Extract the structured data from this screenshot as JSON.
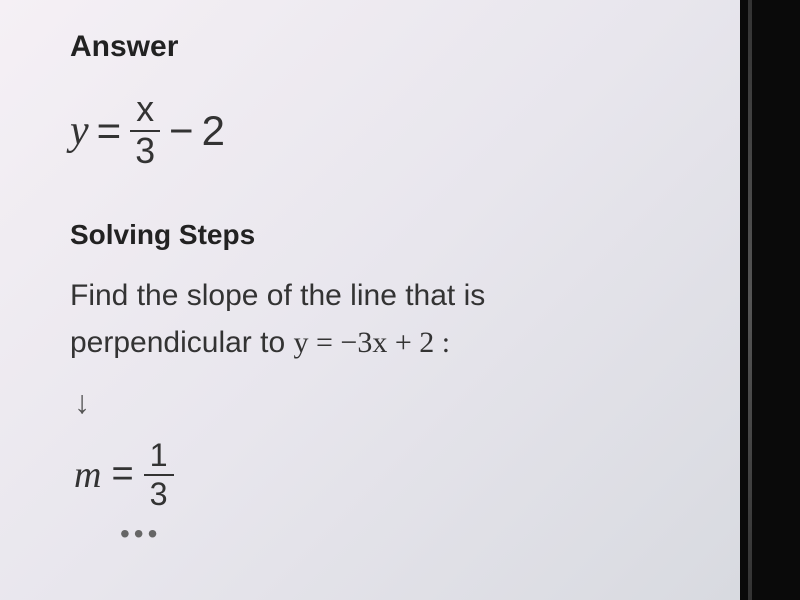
{
  "answer": {
    "heading": "Answer",
    "equation": {
      "lhs": "y",
      "equals": "=",
      "frac_num": "x",
      "frac_den": "3",
      "op": "−",
      "constant": "2"
    }
  },
  "solving": {
    "heading": "Solving Steps",
    "step1_text_a": "Find the slope of the line that is",
    "step1_text_b": "perpendicular to ",
    "step1_eq": "y = −3x + 2 :",
    "arrow": "↓",
    "slope": {
      "lhs": "m",
      "equals": "=",
      "frac_num": "1",
      "frac_den": "3"
    },
    "ellipsis": "•••"
  },
  "styling": {
    "heading_fontsize": 30,
    "body_fontsize": 30,
    "equation_fontsize": 42,
    "text_color": "#2a2a2a",
    "background_gradient_start": "#f5f0f5",
    "background_gradient_end": "#d8dae0",
    "frame_color": "#000000"
  }
}
